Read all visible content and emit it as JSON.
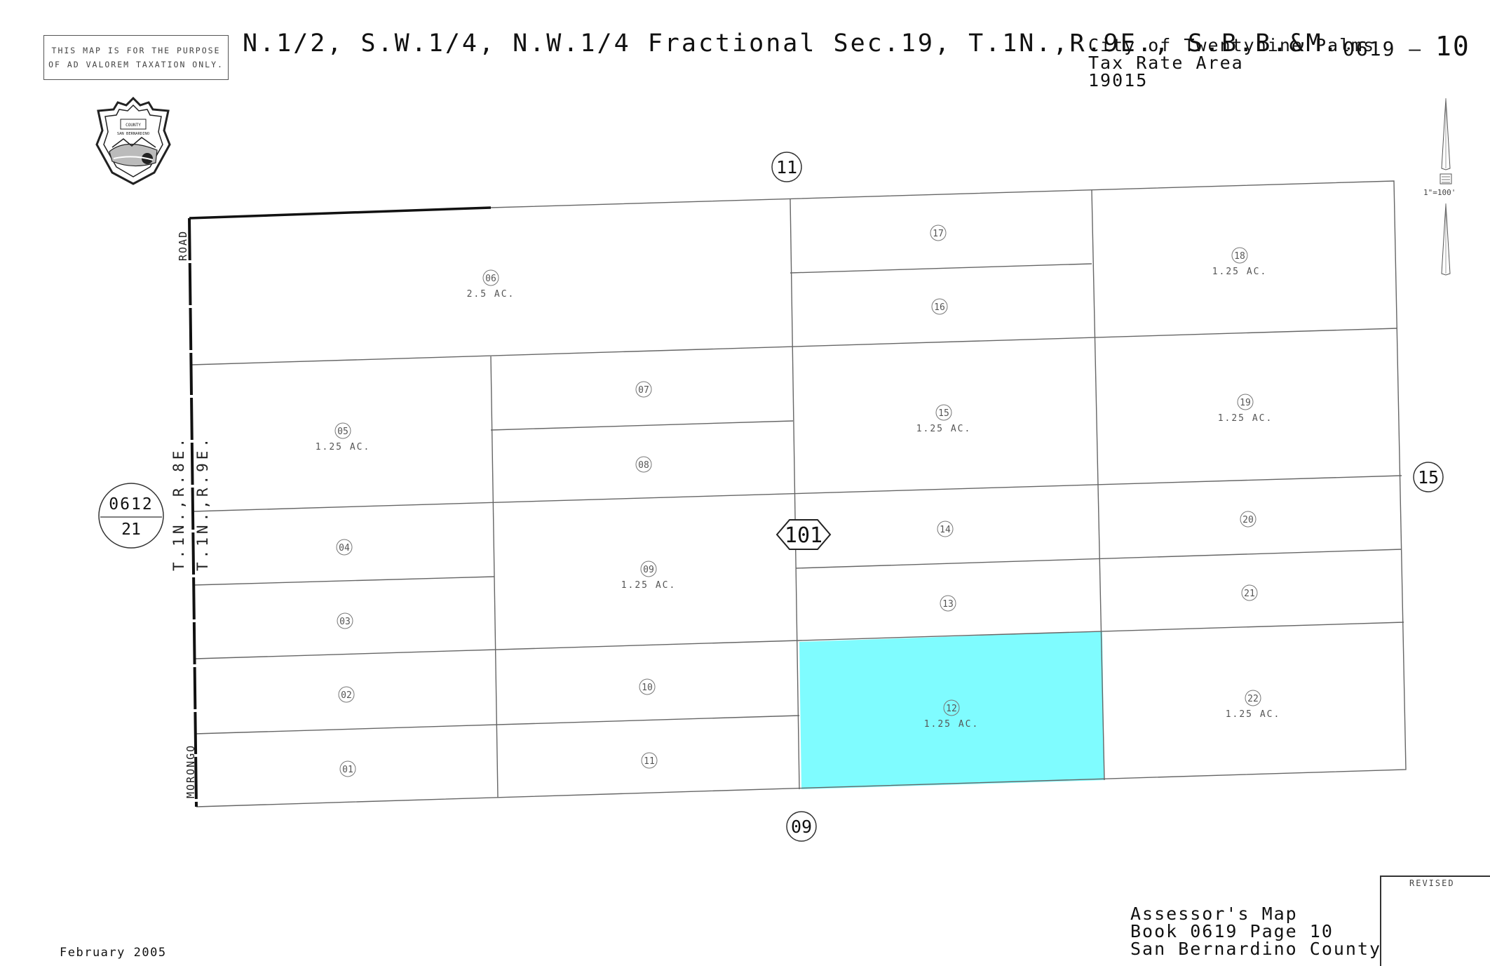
{
  "header": {
    "disclaimer_line1": "THIS MAP IS FOR THE PURPOSE",
    "disclaimer_line2": "OF AD VALOREM TAXATION ONLY.",
    "title": "N.1/2, S.W.1/4, N.W.1/4 Fractional Sec.19, T.1N.,R.9E., S.B.B.&M.",
    "city": "City of Twentynine Palms",
    "tax_rate_area_label": "Tax Rate Area",
    "tax_rate_area": "19015",
    "book": "0619",
    "dash": "–",
    "page": "10"
  },
  "seal": {
    "icon": "county-seal-icon",
    "line1": "COUNTY",
    "line2": "SAN BERNARDINO"
  },
  "north_arrow": {
    "icon": "north-arrow-icon",
    "scale": "1\"=100'"
  },
  "roads": {
    "road_top": "ROAD",
    "road_bottom": "MORONGO",
    "range_left": "T.1N.,R.8E.",
    "range_right": "T.1N.,R.9E."
  },
  "adjacent_pages": {
    "north": "11",
    "south": "09",
    "east": "15",
    "west_book": "0612",
    "west_page": "21"
  },
  "block": "101",
  "parcels": [
    {
      "id": "01",
      "acres": ""
    },
    {
      "id": "02",
      "acres": ""
    },
    {
      "id": "03",
      "acres": ""
    },
    {
      "id": "04",
      "acres": ""
    },
    {
      "id": "05",
      "acres": "1.25 AC."
    },
    {
      "id": "06",
      "acres": "2.5 AC."
    },
    {
      "id": "07",
      "acres": ""
    },
    {
      "id": "08",
      "acres": ""
    },
    {
      "id": "09",
      "acres": "1.25 AC."
    },
    {
      "id": "10",
      "acres": ""
    },
    {
      "id": "11",
      "acres": ""
    },
    {
      "id": "12",
      "acres": "1.25 AC.",
      "highlighted": true
    },
    {
      "id": "13",
      "acres": ""
    },
    {
      "id": "14",
      "acres": ""
    },
    {
      "id": "15",
      "acres": "1.25 AC."
    },
    {
      "id": "16",
      "acres": ""
    },
    {
      "id": "17",
      "acres": ""
    },
    {
      "id": "18",
      "acres": "1.25 AC."
    },
    {
      "id": "19",
      "acres": "1.25 AC."
    },
    {
      "id": "20",
      "acres": ""
    },
    {
      "id": "21",
      "acres": ""
    },
    {
      "id": "22",
      "acres": "1.25 AC."
    }
  ],
  "colors": {
    "highlight": "#7ffcff",
    "line": "#555555"
  },
  "footer": {
    "date": "February 2005",
    "assessor_line1": "Assessor's Map",
    "assessor_line2": "Book 0619 Page 10",
    "assessor_line3": "San Bernardino County",
    "revised": "REVISED"
  }
}
